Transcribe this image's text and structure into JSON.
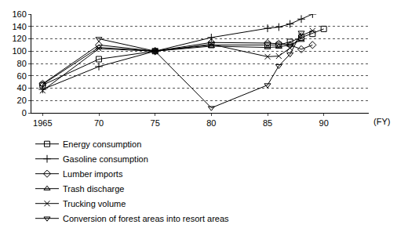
{
  "chart_data": {
    "type": "line",
    "x_label": "(FY)",
    "x": [
      1965,
      1970,
      1975,
      1980,
      1985,
      1986,
      1987,
      1988,
      1989,
      1990
    ],
    "series": [
      {
        "name": "Energy consumption",
        "color": "#000000",
        "marker": "square",
        "values": [
          45,
          87,
          100,
          110,
          110,
          110,
          115,
          122,
          128,
          136
        ]
      },
      {
        "name": "Gasoline consumption",
        "color": "#000000",
        "marker": "cross",
        "values": [
          38,
          75,
          100,
          122,
          137,
          139,
          144,
          152,
          160,
          null
        ]
      },
      {
        "name": "Lumber imports",
        "color": "#000000",
        "marker": "diamond",
        "values": [
          47,
          110,
          100,
          114,
          113,
          112,
          110,
          103,
          110,
          null
        ]
      },
      {
        "name": "Trash discharge",
        "color": "#000000",
        "marker": "triangle-up",
        "values": [
          46,
          106,
          100,
          108,
          106,
          107,
          110,
          118,
          null,
          null
        ]
      },
      {
        "name": "Trucking volume",
        "color": "#000000",
        "marker": "x",
        "values": [
          36,
          104,
          100,
          111,
          91,
          92,
          105,
          125,
          133,
          null
        ]
      },
      {
        "name": "Conversion of forest areas into resort areas",
        "color": "#000000",
        "marker": "triangle-down",
        "values": [
          null,
          120,
          100,
          8,
          45,
          76,
          95,
          130,
          null,
          null
        ]
      }
    ],
    "xlim": [
      1964,
      1994
    ],
    "xticks": [
      1965,
      {
        "value": 1970,
        "label": "70"
      },
      {
        "value": 1975,
        "label": "75"
      },
      {
        "value": 1980,
        "label": "80"
      },
      {
        "value": 1985,
        "label": "85"
      },
      {
        "value": 1990,
        "label": "90"
      }
    ],
    "ylim": [
      0,
      160
    ],
    "yticks": [
      0,
      20,
      40,
      60,
      80,
      100,
      120,
      140,
      160
    ],
    "grid": true,
    "legend": "bottom"
  }
}
